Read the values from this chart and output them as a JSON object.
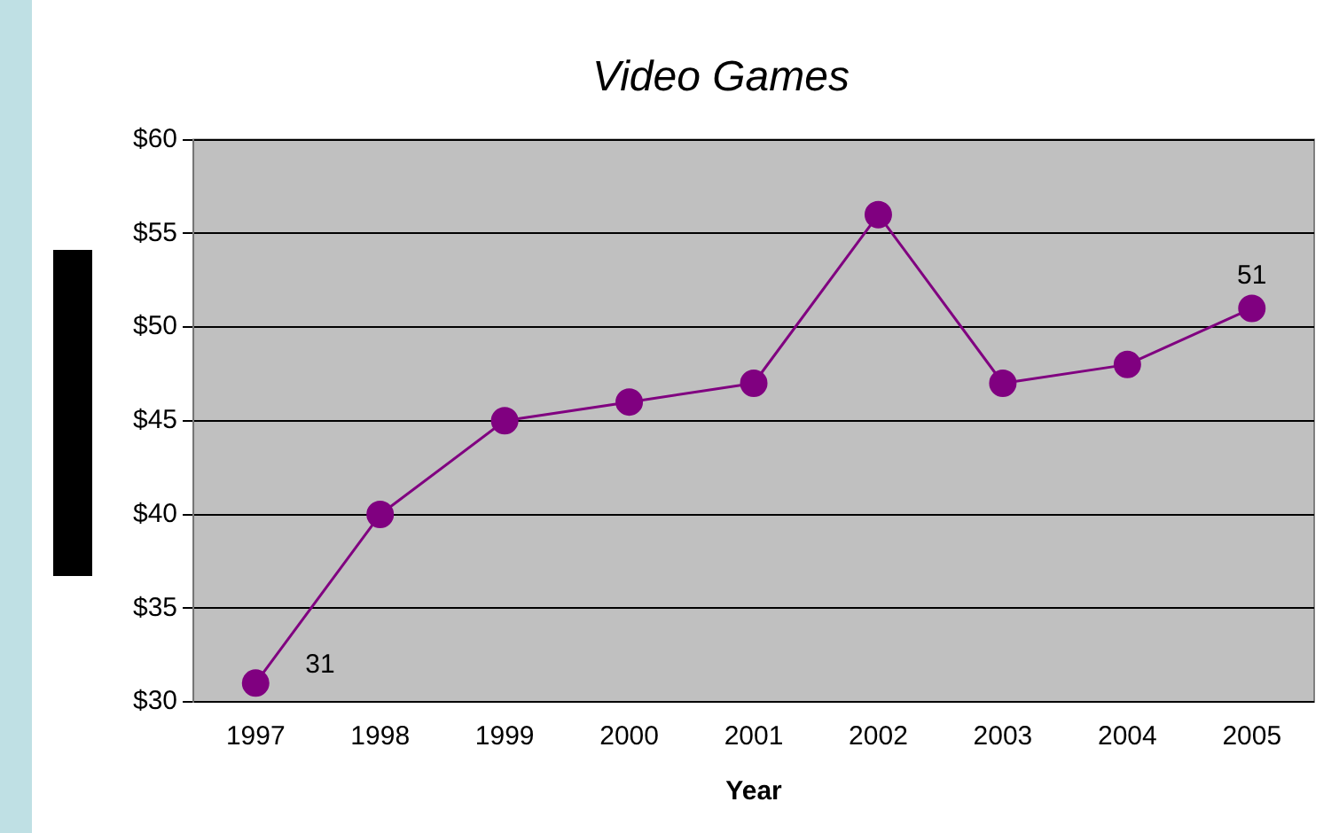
{
  "chart_data": {
    "type": "line",
    "title": "Video Games",
    "xlabel": "Year",
    "categories": [
      "1997",
      "1998",
      "1999",
      "2000",
      "2001",
      "2002",
      "2003",
      "2004",
      "2005"
    ],
    "series": [
      {
        "color": "#800080",
        "values": [
          31,
          40,
          45,
          46,
          47,
          56,
          47,
          48,
          51
        ],
        "value_labels": [
          "31",
          null,
          null,
          null,
          null,
          null,
          null,
          null,
          "51"
        ]
      }
    ],
    "ylim": [
      30,
      60
    ],
    "yticks": [
      {
        "value": 30,
        "label": "$30"
      },
      {
        "value": 35,
        "label": "$35"
      },
      {
        "value": 40,
        "label": "$40"
      },
      {
        "value": 45,
        "label": "$45"
      },
      {
        "value": 50,
        "label": "$50"
      },
      {
        "value": 55,
        "label": "$55"
      },
      {
        "value": 60,
        "label": "$60"
      }
    ],
    "grid": "y",
    "marker": "circle",
    "legend": false
  }
}
